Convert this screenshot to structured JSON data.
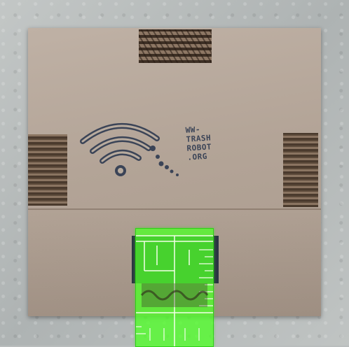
{
  "scene": {
    "description_label": "cardboard square with wifi symbol print and green ruler",
    "background_color": "#b9bdbd",
    "board_color": "#b3a497",
    "ink_color": "#3b4457",
    "ruler_color": "#50ff28"
  },
  "stamp": {
    "line1": "WW-",
    "line2": "TRASH",
    "line3": "ROBOT",
    "line4": ".ORG"
  },
  "icons": {
    "wifi": "wifi-icon",
    "ruler": "ruler-icon"
  }
}
